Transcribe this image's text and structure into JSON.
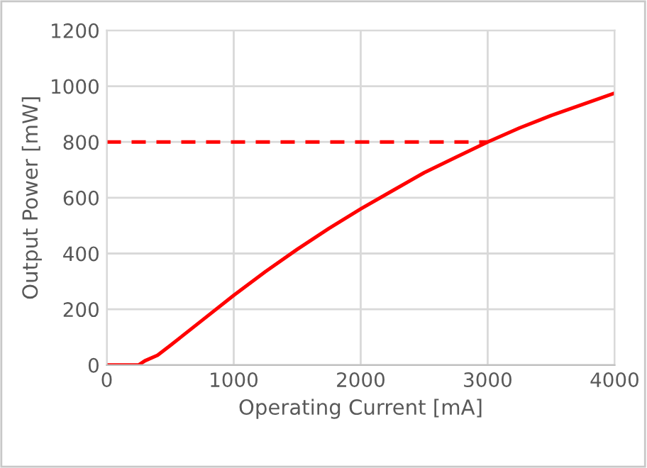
{
  "chart_data": {
    "type": "line",
    "xlabel": "Operating Current [mA]",
    "ylabel": "Output Power [mW]",
    "xlim": [
      0,
      4000
    ],
    "xticks": [
      0,
      1000,
      2000,
      3000,
      4000
    ],
    "ylim": [
      0,
      1200
    ],
    "yticks": [
      0,
      200,
      400,
      600,
      800,
      1000,
      1200
    ],
    "grid": true,
    "legend": false,
    "series": [
      {
        "color": "#ff0000",
        "line_style": "solid",
        "x": [
          0,
          250,
          300,
          400,
          500,
          750,
          1000,
          1250,
          1500,
          1750,
          2000,
          2250,
          2500,
          2750,
          3000,
          3250,
          3500,
          3750,
          4000
        ],
        "values": [
          0,
          0,
          15,
          35,
          70,
          160,
          250,
          335,
          415,
          490,
          560,
          625,
          690,
          745,
          800,
          850,
          895,
          935,
          975
        ]
      },
      {
        "color": "#ff0000",
        "line_style": "dashed",
        "x": [
          0,
          3000
        ],
        "values": [
          800,
          800
        ]
      }
    ]
  }
}
